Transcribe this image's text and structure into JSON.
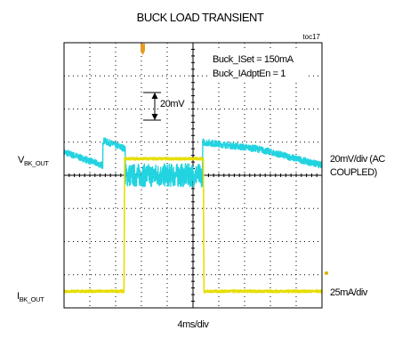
{
  "chart_data": {
    "type": "line",
    "title": "BUCK LOAD TRANSIENT",
    "figure_id": "toc17",
    "conditions": [
      "Buck_ISet = 150mA",
      "Buck_IAdptEn = 1"
    ],
    "xlabel": "4ms/div",
    "x_unit": "ms",
    "xlim": [
      0,
      40
    ],
    "grid": true,
    "annotation": {
      "text": "20mV",
      "x": 10.5,
      "y_from": 21,
      "y_to": 0,
      "series": "VBK_OUT"
    },
    "series": [
      {
        "name": "VBK_OUT",
        "name_main": "V",
        "name_sub": "BK_OUT",
        "scale": "20mV/div (AC COUPLED)",
        "scale_line1": "20mV/div (AC",
        "scale_line2": "COUPLED)",
        "color": "#22d3e0",
        "y_unit": "mV",
        "zero_div": 4.0,
        "div_value": 20,
        "x": [
          0,
          6,
          6.01,
          9.5,
          9.51,
          21.5,
          21.51,
          30,
          40
        ],
        "y": [
          14,
          6,
          21,
          16,
          0,
          0,
          20,
          16,
          6
        ],
        "noise": [
          2,
          2,
          2,
          2,
          7,
          7,
          2,
          2,
          2
        ]
      },
      {
        "name": "IBK_OUT",
        "name_main": "I",
        "name_sub": "BK_OUT",
        "scale": "25mA/div",
        "color": "#e6dd00",
        "y_unit": "mA",
        "zero_div": 7.5,
        "div_value": 25,
        "x": [
          0,
          9.3,
          9.4,
          21.6,
          21.7,
          40
        ],
        "y": [
          0,
          0,
          100,
          100,
          0,
          0
        ],
        "noise": [
          1,
          1,
          1,
          1,
          1,
          1
        ]
      }
    ]
  }
}
